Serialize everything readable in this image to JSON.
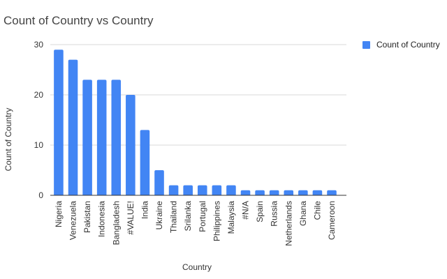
{
  "chart_data": {
    "type": "bar",
    "title": "Count of Country vs Country",
    "xlabel": "Country",
    "ylabel": "Count of Country",
    "categories": [
      "Nigeria",
      "Venezuela",
      "Pakistan",
      "Indonesia",
      "Bangladesh",
      "#VALUE!",
      "India",
      "Ukraine",
      "Thailand",
      "Srilanka",
      "Portugal",
      "Philippines",
      "Malaysia",
      "#N/A",
      "Spain",
      "Russia",
      "Netherlands",
      "Ghana",
      "Chile",
      "Cameroon"
    ],
    "series": [
      {
        "name": "Count of Country",
        "color": "#4285f4",
        "values": [
          29,
          27,
          23,
          23,
          23,
          20,
          13,
          5,
          2,
          2,
          2,
          2,
          2,
          1,
          1,
          1,
          1,
          1,
          1,
          1
        ]
      }
    ],
    "ylim": [
      0,
      30
    ],
    "yticks": [
      0,
      10,
      20,
      30
    ],
    "ytick_labels": [
      "0",
      "10",
      "20",
      "30"
    ],
    "grid": true,
    "legend_position": "right"
  }
}
